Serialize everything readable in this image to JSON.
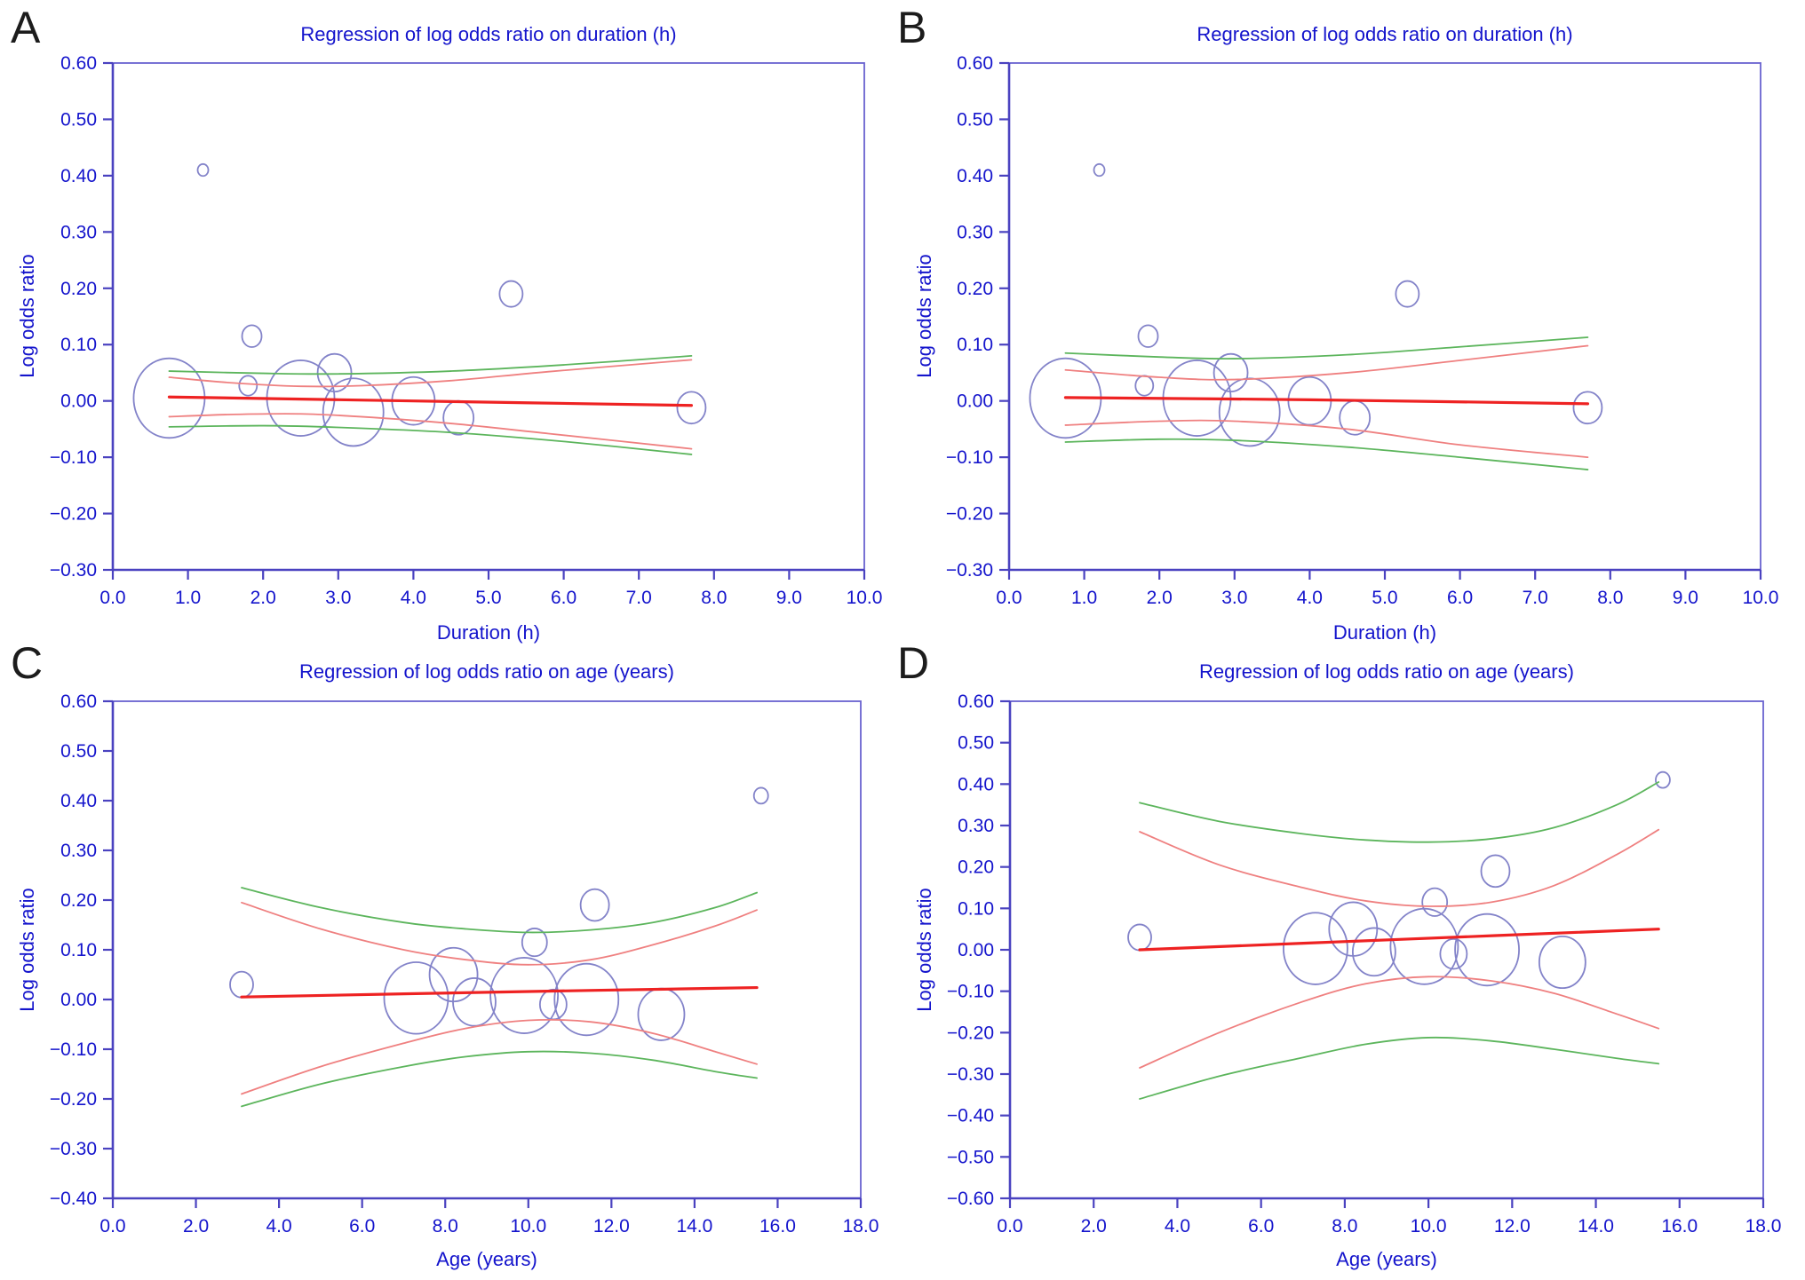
{
  "figure": {
    "background": "#ffffff",
    "colors": {
      "frame": "#6a62cf",
      "axis": "#4a42c0",
      "tick_text": "#1414cc",
      "title_text": "#1414cc",
      "panel_letter": "#1c1c1c",
      "bubble": "#8383c9",
      "regression": "#ee2222",
      "ci": "#ef8080",
      "prediction": "#5cb55c"
    }
  },
  "chart_data": [
    {
      "id": "A",
      "panel_label": "A",
      "type": "scatter",
      "title": "Regression of log odds ratio on duration (h)",
      "xlabel": "Duration (h)",
      "ylabel": "Log odds ratio",
      "xlim": [
        0,
        10
      ],
      "ylim": [
        -0.3,
        0.6
      ],
      "grid": false,
      "legend_position": "none",
      "xtick_values": [
        0,
        1,
        2,
        3,
        4,
        5,
        6,
        7,
        8,
        9,
        10
      ],
      "xtick_labels": [
        "0.0",
        "1.0",
        "2.0",
        "3.0",
        "4.0",
        "5.0",
        "6.0",
        "7.0",
        "8.0",
        "9.0",
        "10.0"
      ],
      "ytick_values": [
        0.6,
        0.5,
        0.4,
        0.3,
        0.2,
        0.1,
        0.0,
        -0.1,
        -0.2,
        -0.3
      ],
      "ytick_labels": [
        "0.60",
        "0.50",
        "0.40",
        "0.30",
        "0.20",
        "0.10",
        "0.00",
        "−0.10",
        "−0.20",
        "−0.30"
      ],
      "series": {
        "bubbles": [
          {
            "x": 0.75,
            "y": 0.005,
            "r": 40
          },
          {
            "x": 1.2,
            "y": 0.41,
            "r": 6
          },
          {
            "x": 1.8,
            "y": 0.027,
            "r": 10
          },
          {
            "x": 1.85,
            "y": 0.115,
            "r": 11
          },
          {
            "x": 2.5,
            "y": 0.005,
            "r": 38
          },
          {
            "x": 2.95,
            "y": 0.05,
            "r": 19
          },
          {
            "x": 3.2,
            "y": -0.02,
            "r": 34
          },
          {
            "x": 4.0,
            "y": 0.0,
            "r": 24
          },
          {
            "x": 4.6,
            "y": -0.03,
            "r": 17
          },
          {
            "x": 5.3,
            "y": 0.19,
            "r": 13
          },
          {
            "x": 7.7,
            "y": -0.012,
            "r": 16
          }
        ],
        "regression": [
          [
            0.75,
            0.007
          ],
          [
            4.0,
            0.0
          ],
          [
            7.7,
            -0.008
          ]
        ],
        "ci_upper": [
          [
            0.75,
            0.042
          ],
          [
            1.6,
            0.032
          ],
          [
            2.5,
            0.026
          ],
          [
            3.3,
            0.027
          ],
          [
            4.5,
            0.036
          ],
          [
            5.8,
            0.052
          ],
          [
            7.7,
            0.073
          ]
        ],
        "ci_lower": [
          [
            0.75,
            -0.028
          ],
          [
            1.6,
            -0.024
          ],
          [
            2.5,
            -0.023
          ],
          [
            3.3,
            -0.028
          ],
          [
            4.5,
            -0.04
          ],
          [
            5.8,
            -0.058
          ],
          [
            7.7,
            -0.085
          ]
        ],
        "pred_upper": [
          [
            0.75,
            0.053
          ],
          [
            2.0,
            0.049
          ],
          [
            3.0,
            0.048
          ],
          [
            4.5,
            0.053
          ],
          [
            6.0,
            0.064
          ],
          [
            7.7,
            0.08
          ]
        ],
        "pred_lower": [
          [
            0.75,
            -0.046
          ],
          [
            2.0,
            -0.044
          ],
          [
            3.0,
            -0.047
          ],
          [
            4.5,
            -0.056
          ],
          [
            6.0,
            -0.072
          ],
          [
            7.7,
            -0.095
          ]
        ]
      }
    },
    {
      "id": "B",
      "panel_label": "B",
      "type": "scatter",
      "title": "Regression of log odds ratio on duration (h)",
      "xlabel": "Duration (h)",
      "ylabel": "Log odds ratio",
      "xlim": [
        0,
        10
      ],
      "ylim": [
        -0.3,
        0.6
      ],
      "grid": false,
      "legend_position": "none",
      "xtick_values": [
        0,
        1,
        2,
        3,
        4,
        5,
        6,
        7,
        8,
        9,
        10
      ],
      "xtick_labels": [
        "0.0",
        "1.0",
        "2.0",
        "3.0",
        "4.0",
        "5.0",
        "6.0",
        "7.0",
        "8.0",
        "9.0",
        "10.0"
      ],
      "ytick_values": [
        0.6,
        0.5,
        0.4,
        0.3,
        0.2,
        0.1,
        0.0,
        -0.1,
        -0.2,
        -0.3
      ],
      "ytick_labels": [
        "0.60",
        "0.50",
        "0.40",
        "0.30",
        "0.20",
        "0.10",
        "0.00",
        "−0.10",
        "−0.20",
        "−0.30"
      ],
      "series": {
        "bubbles": [
          {
            "x": 0.75,
            "y": 0.005,
            "r": 40
          },
          {
            "x": 1.2,
            "y": 0.41,
            "r": 6
          },
          {
            "x": 1.8,
            "y": 0.027,
            "r": 10
          },
          {
            "x": 1.85,
            "y": 0.115,
            "r": 11
          },
          {
            "x": 2.5,
            "y": 0.005,
            "r": 38
          },
          {
            "x": 2.95,
            "y": 0.05,
            "r": 19
          },
          {
            "x": 3.2,
            "y": -0.02,
            "r": 34
          },
          {
            "x": 4.0,
            "y": 0.0,
            "r": 24
          },
          {
            "x": 4.6,
            "y": -0.03,
            "r": 17
          },
          {
            "x": 5.3,
            "y": 0.19,
            "r": 13
          },
          {
            "x": 7.7,
            "y": -0.012,
            "r": 16
          }
        ],
        "regression": [
          [
            0.75,
            0.006
          ],
          [
            4.0,
            0.002
          ],
          [
            7.7,
            -0.005
          ]
        ],
        "ci_upper": [
          [
            0.75,
            0.055
          ],
          [
            2.0,
            0.042
          ],
          [
            3.0,
            0.038
          ],
          [
            4.5,
            0.05
          ],
          [
            6.0,
            0.072
          ],
          [
            7.7,
            0.098
          ]
        ],
        "ci_lower": [
          [
            0.75,
            -0.043
          ],
          [
            2.0,
            -0.036
          ],
          [
            3.0,
            -0.036
          ],
          [
            4.5,
            -0.05
          ],
          [
            6.0,
            -0.078
          ],
          [
            7.7,
            -0.1
          ]
        ],
        "pred_upper": [
          [
            0.75,
            0.085
          ],
          [
            2.0,
            0.078
          ],
          [
            3.0,
            0.075
          ],
          [
            4.5,
            0.082
          ],
          [
            6.0,
            0.096
          ],
          [
            7.7,
            0.113
          ]
        ],
        "pred_lower": [
          [
            0.75,
            -0.073
          ],
          [
            2.0,
            -0.068
          ],
          [
            3.0,
            -0.07
          ],
          [
            4.5,
            -0.082
          ],
          [
            6.0,
            -0.1
          ],
          [
            7.7,
            -0.122
          ]
        ]
      }
    },
    {
      "id": "C",
      "panel_label": "C",
      "type": "scatter",
      "title": "Regression of log odds ratio on age (years)",
      "xlabel": "Age (years)",
      "ylabel": "Log odds ratio",
      "xlim": [
        0,
        18
      ],
      "ylim": [
        -0.4,
        0.6
      ],
      "grid": false,
      "legend_position": "none",
      "xtick_values": [
        0,
        2,
        4,
        6,
        8,
        10,
        12,
        14,
        16,
        18
      ],
      "xtick_labels": [
        "0.0",
        "2.0",
        "4.0",
        "6.0",
        "8.0",
        "10.0",
        "12.0",
        "14.0",
        "16.0",
        "18.0"
      ],
      "ytick_values": [
        0.6,
        0.5,
        0.4,
        0.3,
        0.2,
        0.1,
        0.0,
        -0.1,
        -0.2,
        -0.3,
        -0.4
      ],
      "ytick_labels": [
        "0.60",
        "0.50",
        "0.40",
        "0.30",
        "0.20",
        "0.10",
        "0.00",
        "−0.10",
        "−0.20",
        "−0.30",
        "−0.40"
      ],
      "series": {
        "bubbles": [
          {
            "x": 3.1,
            "y": 0.03,
            "r": 13
          },
          {
            "x": 7.3,
            "y": 0.003,
            "r": 36
          },
          {
            "x": 8.2,
            "y": 0.05,
            "r": 27
          },
          {
            "x": 8.7,
            "y": -0.005,
            "r": 24
          },
          {
            "x": 9.9,
            "y": 0.008,
            "r": 38
          },
          {
            "x": 10.15,
            "y": 0.115,
            "r": 14
          },
          {
            "x": 10.6,
            "y": -0.01,
            "r": 15
          },
          {
            "x": 11.4,
            "y": 0.0,
            "r": 36
          },
          {
            "x": 11.6,
            "y": 0.19,
            "r": 16
          },
          {
            "x": 13.2,
            "y": -0.03,
            "r": 26
          },
          {
            "x": 15.6,
            "y": 0.41,
            "r": 8
          }
        ],
        "regression": [
          [
            3.1,
            0.005
          ],
          [
            9.3,
            0.015
          ],
          [
            15.5,
            0.024
          ]
        ],
        "ci_upper": [
          [
            3.1,
            0.195
          ],
          [
            5.0,
            0.142
          ],
          [
            7.0,
            0.1
          ],
          [
            8.5,
            0.08
          ],
          [
            10.0,
            0.07
          ],
          [
            11.5,
            0.08
          ],
          [
            13.0,
            0.11
          ],
          [
            14.5,
            0.148
          ],
          [
            15.5,
            0.18
          ]
        ],
        "ci_lower": [
          [
            3.1,
            -0.19
          ],
          [
            5.0,
            -0.135
          ],
          [
            7.0,
            -0.088
          ],
          [
            8.5,
            -0.058
          ],
          [
            10.0,
            -0.042
          ],
          [
            11.5,
            -0.045
          ],
          [
            13.0,
            -0.068
          ],
          [
            14.5,
            -0.105
          ],
          [
            15.5,
            -0.13
          ]
        ],
        "pred_upper": [
          [
            3.1,
            0.225
          ],
          [
            5.0,
            0.185
          ],
          [
            7.0,
            0.155
          ],
          [
            8.5,
            0.142
          ],
          [
            10.0,
            0.135
          ],
          [
            11.5,
            0.14
          ],
          [
            13.0,
            0.155
          ],
          [
            14.5,
            0.185
          ],
          [
            15.5,
            0.215
          ]
        ],
        "pred_lower": [
          [
            3.1,
            -0.215
          ],
          [
            5.0,
            -0.17
          ],
          [
            7.0,
            -0.135
          ],
          [
            8.5,
            -0.115
          ],
          [
            10.0,
            -0.105
          ],
          [
            11.5,
            -0.108
          ],
          [
            13.0,
            -0.122
          ],
          [
            14.5,
            -0.145
          ],
          [
            15.5,
            -0.158
          ]
        ]
      }
    },
    {
      "id": "D",
      "panel_label": "D",
      "type": "scatter",
      "title": "Regression of log odds ratio on age (years)",
      "xlabel": "Age (years)",
      "ylabel": "Log odds ratio",
      "xlim": [
        0,
        18
      ],
      "ylim": [
        -0.6,
        0.6
      ],
      "grid": false,
      "legend_position": "none",
      "xtick_values": [
        0,
        2,
        4,
        6,
        8,
        10,
        12,
        14,
        16,
        18
      ],
      "xtick_labels": [
        "0.0",
        "2.0",
        "4.0",
        "6.0",
        "8.0",
        "10.0",
        "12.0",
        "14.0",
        "16.0",
        "18.0"
      ],
      "ytick_values": [
        0.6,
        0.5,
        0.4,
        0.3,
        0.2,
        0.1,
        0.0,
        -0.1,
        -0.2,
        -0.3,
        -0.4,
        -0.5,
        -0.6
      ],
      "ytick_labels": [
        "0.60",
        "0.50",
        "0.40",
        "0.30",
        "0.20",
        "0.10",
        "0.00",
        "−0.10",
        "−0.20",
        "−0.30",
        "−0.40",
        "−0.50",
        "−0.60"
      ],
      "series": {
        "bubbles": [
          {
            "x": 3.1,
            "y": 0.03,
            "r": 13
          },
          {
            "x": 7.3,
            "y": 0.003,
            "r": 36
          },
          {
            "x": 8.2,
            "y": 0.05,
            "r": 27
          },
          {
            "x": 8.7,
            "y": -0.005,
            "r": 24
          },
          {
            "x": 9.9,
            "y": 0.008,
            "r": 38
          },
          {
            "x": 10.15,
            "y": 0.115,
            "r": 14
          },
          {
            "x": 10.6,
            "y": -0.01,
            "r": 15
          },
          {
            "x": 11.4,
            "y": 0.0,
            "r": 36
          },
          {
            "x": 11.6,
            "y": 0.19,
            "r": 16
          },
          {
            "x": 13.2,
            "y": -0.03,
            "r": 26
          },
          {
            "x": 15.6,
            "y": 0.41,
            "r": 8
          }
        ],
        "regression": [
          [
            3.1,
            0.0
          ],
          [
            9.3,
            0.025
          ],
          [
            15.5,
            0.05
          ]
        ],
        "ci_upper": [
          [
            3.1,
            0.285
          ],
          [
            5.0,
            0.205
          ],
          [
            7.0,
            0.15
          ],
          [
            8.5,
            0.118
          ],
          [
            10.0,
            0.105
          ],
          [
            11.5,
            0.115
          ],
          [
            13.0,
            0.155
          ],
          [
            14.5,
            0.23
          ],
          [
            15.5,
            0.29
          ]
        ],
        "ci_lower": [
          [
            3.1,
            -0.285
          ],
          [
            5.0,
            -0.2
          ],
          [
            7.0,
            -0.125
          ],
          [
            8.5,
            -0.082
          ],
          [
            10.0,
            -0.065
          ],
          [
            11.5,
            -0.075
          ],
          [
            13.0,
            -0.105
          ],
          [
            14.5,
            -0.155
          ],
          [
            15.5,
            -0.19
          ]
        ],
        "pred_upper": [
          [
            3.1,
            0.355
          ],
          [
            5.0,
            0.31
          ],
          [
            7.0,
            0.28
          ],
          [
            8.5,
            0.265
          ],
          [
            10.0,
            0.26
          ],
          [
            11.5,
            0.268
          ],
          [
            13.0,
            0.295
          ],
          [
            14.5,
            0.35
          ],
          [
            15.5,
            0.405
          ]
        ],
        "pred_lower": [
          [
            3.1,
            -0.36
          ],
          [
            5.0,
            -0.305
          ],
          [
            7.0,
            -0.26
          ],
          [
            8.5,
            -0.228
          ],
          [
            10.0,
            -0.212
          ],
          [
            11.5,
            -0.22
          ],
          [
            13.0,
            -0.24
          ],
          [
            14.5,
            -0.262
          ],
          [
            15.5,
            -0.275
          ]
        ]
      }
    }
  ]
}
